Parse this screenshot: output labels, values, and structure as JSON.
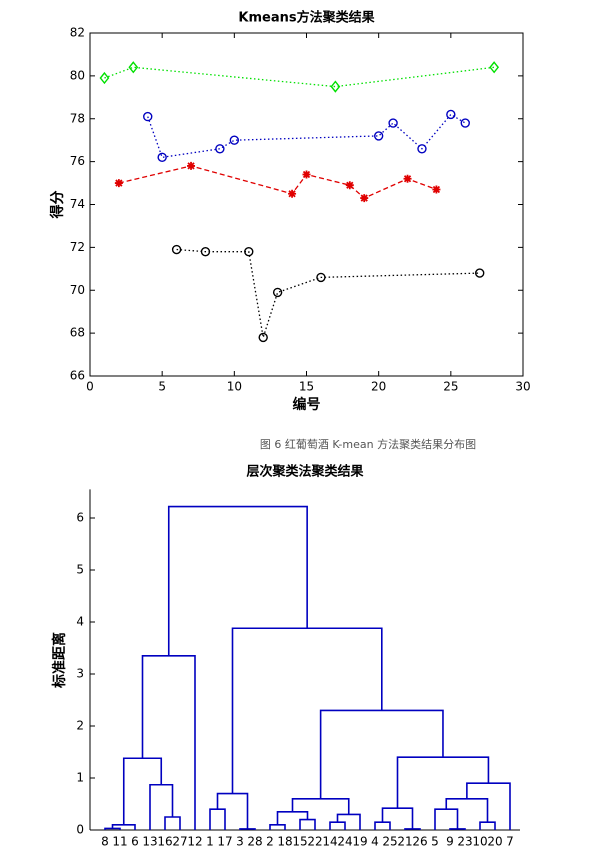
{
  "chart_data": [
    {
      "type": "line",
      "title": "Kmeans方法聚类结果",
      "xlabel": "编号",
      "ylabel": "得分",
      "xlim": [
        0,
        30
      ],
      "xticks": [
        0,
        5,
        10,
        15,
        20,
        25,
        30
      ],
      "ylim": [
        66,
        82
      ],
      "yticks": [
        66,
        68,
        70,
        72,
        74,
        76,
        78,
        80,
        82
      ],
      "series": [
        {
          "color": "#00e000",
          "linestyle": "dotted",
          "marker": "diamond",
          "x": [
            1,
            3,
            17,
            28
          ],
          "values": [
            79.9,
            80.4,
            79.5,
            80.4
          ]
        },
        {
          "color": "#0000c0",
          "linestyle": "dotted",
          "marker": "circle",
          "x": [
            4,
            5,
            9,
            10,
            20,
            21,
            23,
            25,
            26
          ],
          "values": [
            78.1,
            76.2,
            76.6,
            77.0,
            77.2,
            77.8,
            76.6,
            78.2,
            77.8
          ]
        },
        {
          "color": "#e00000",
          "linestyle": "dashed",
          "marker": "star",
          "x": [
            2,
            7,
            14,
            15,
            18,
            19,
            22,
            24
          ],
          "values": [
            75.0,
            75.8,
            74.5,
            75.4,
            74.9,
            74.3,
            75.2,
            74.7
          ]
        },
        {
          "color": "#000000",
          "linestyle": "dotted",
          "marker": "circle",
          "x": [
            6,
            8,
            11,
            12,
            13,
            16,
            27
          ],
          "values": [
            71.9,
            71.8,
            71.8,
            67.8,
            69.9,
            70.6,
            70.8
          ]
        }
      ]
    },
    {
      "type": "dendrogram",
      "title": "层次聚类法聚类结果",
      "ylabel": "标准距离",
      "color": "#0000c0",
      "ylim": [
        0,
        6.55
      ],
      "yticks": [
        0,
        1,
        2,
        3,
        4,
        5,
        6
      ],
      "leaves": [
        "8",
        "11",
        "6",
        "13",
        "16",
        "27",
        "12",
        "1",
        "17",
        "3",
        "28",
        "2",
        "18",
        "15",
        "22",
        "14",
        "24",
        "19",
        "4",
        "25",
        "21",
        "26",
        "5",
        "9",
        "23",
        "10",
        "20",
        "7"
      ],
      "links": [
        [
          0,
          1,
          0.03
        ],
        [
          28,
          2,
          0.1
        ],
        [
          4,
          5,
          0.25
        ],
        [
          3,
          30,
          0.87
        ],
        [
          29,
          31,
          1.38
        ],
        [
          32,
          6,
          3.35
        ],
        [
          7,
          8,
          0.4
        ],
        [
          9,
          10,
          0.02
        ],
        [
          34,
          35,
          0.7
        ],
        [
          11,
          12,
          0.1
        ],
        [
          13,
          14,
          0.2
        ],
        [
          37,
          38,
          0.35
        ],
        [
          15,
          16,
          0.15
        ],
        [
          40,
          17,
          0.3
        ],
        [
          39,
          41,
          0.6
        ],
        [
          18,
          19,
          0.15
        ],
        [
          20,
          21,
          0.02
        ],
        [
          43,
          44,
          0.42
        ],
        [
          23,
          24,
          0.02
        ],
        [
          22,
          46,
          0.4
        ],
        [
          25,
          26,
          0.15
        ],
        [
          47,
          48,
          0.6
        ],
        [
          49,
          27,
          0.9
        ],
        [
          45,
          50,
          1.4
        ],
        [
          42,
          51,
          2.3
        ],
        [
          36,
          52,
          3.88
        ],
        [
          33,
          53,
          6.22
        ]
      ]
    }
  ],
  "caption": "图 6  红葡萄酒 K-mean 方法聚类结果分布图"
}
